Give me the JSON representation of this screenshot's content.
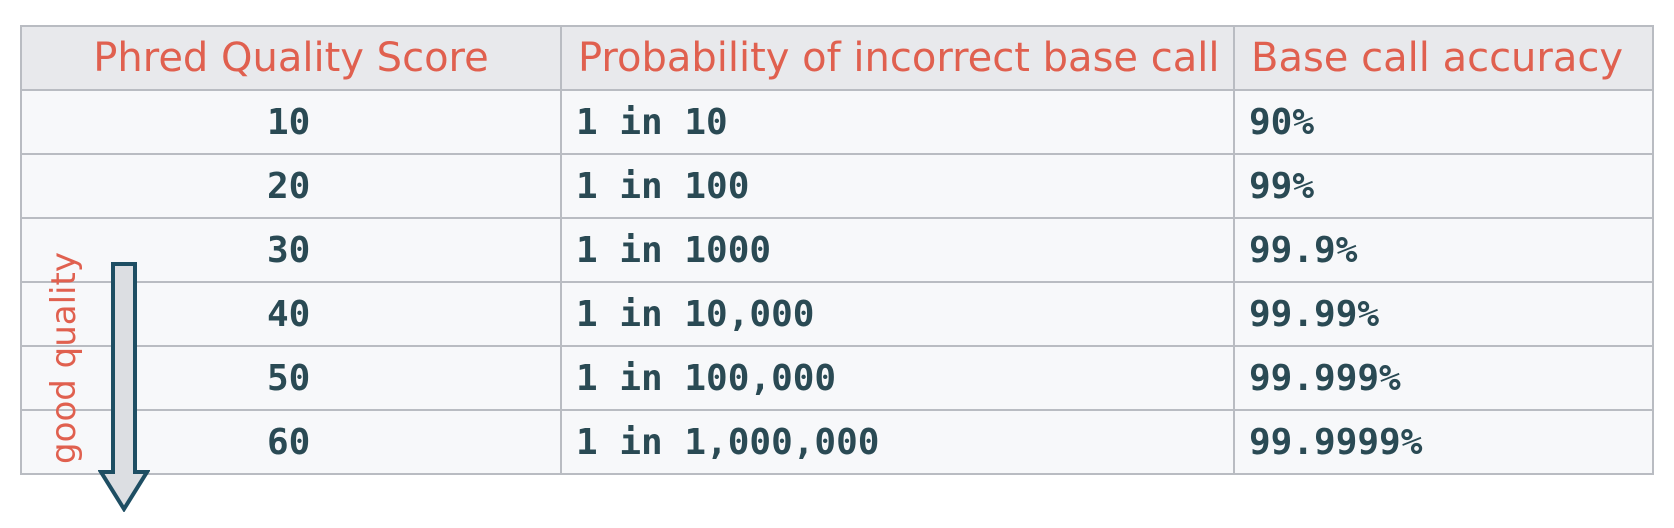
{
  "table": {
    "headers": [
      "Phred Quality Score",
      "Probability of incorrect base call",
      "Base call accuracy"
    ],
    "rows": [
      [
        "10",
        "1 in 10",
        "90%"
      ],
      [
        "20",
        "1 in 100",
        "99%"
      ],
      [
        "30",
        "1 in 1000",
        "99.9%"
      ],
      [
        "40",
        "1 in 10,000",
        "99.99%"
      ],
      [
        "50",
        "1 in 100,000",
        "99.999%"
      ],
      [
        "60",
        "1 in 1,000,000",
        "99.9999%"
      ]
    ]
  },
  "annotation": {
    "label": "good quality",
    "icon": "down-arrow-icon"
  },
  "colors": {
    "header_text": "#e0604f",
    "cell_text": "#2a4a54",
    "header_bg": "#e8e9ec",
    "cell_bg": "#f7f8fa",
    "border": "#b9bcc2",
    "arrow_fill": "#dcdee2",
    "arrow_stroke": "#1e4e63"
  }
}
